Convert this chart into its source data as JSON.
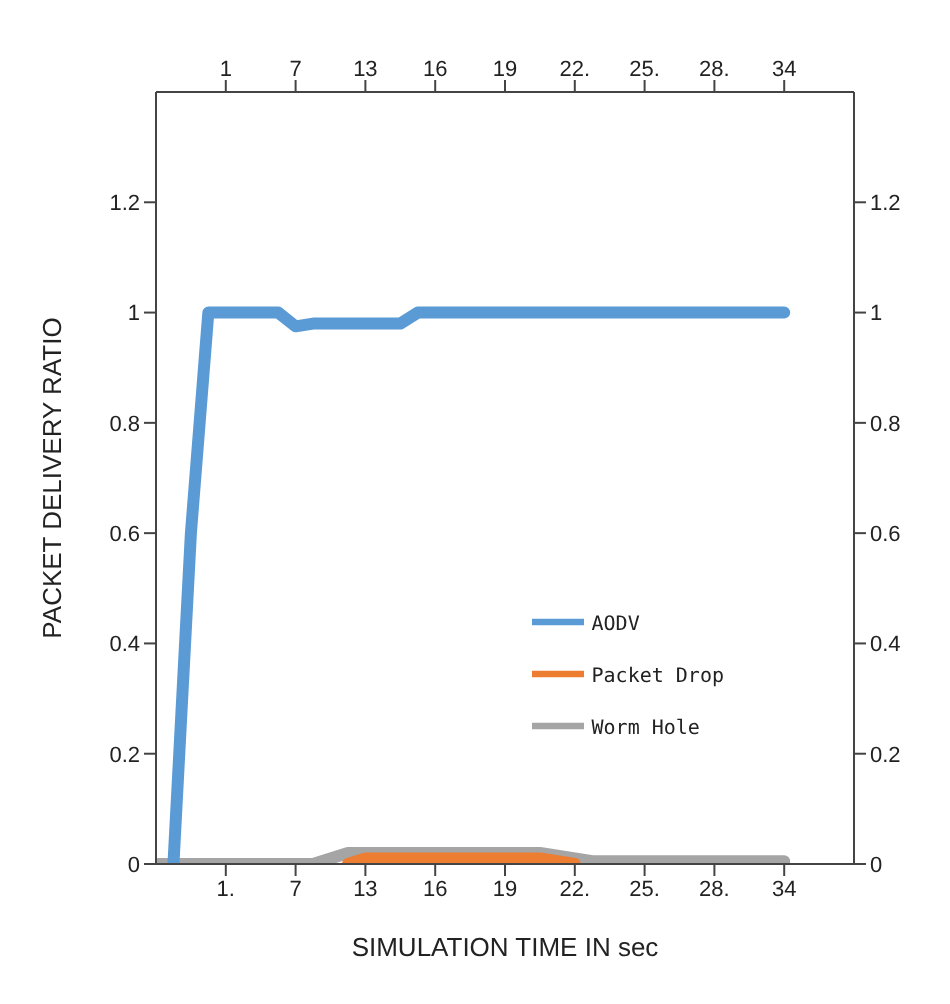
{
  "chart_data": {
    "type": "line",
    "xlabel": "SIMULATION TIME IN sec",
    "ylabel": "PACKET DELIVERY RATIO",
    "categories": [
      null,
      null,
      null,
      null,
      "1.",
      null,
      null,
      null,
      "7",
      null,
      null,
      null,
      "13",
      null,
      null,
      null,
      "16",
      null,
      null,
      null,
      "19",
      null,
      null,
      null,
      "22.",
      null,
      null,
      null,
      "25.",
      null,
      null,
      null,
      "28.",
      null,
      null,
      null,
      "34",
      null,
      null,
      null,
      null
    ],
    "annotations": [
      "1",
      "7",
      "13",
      "16",
      "19",
      "22.",
      "25.",
      "28.",
      "34"
    ],
    "ylim": [
      0,
      1.4
    ],
    "yticks": [
      0,
      0.2,
      0.4,
      0.6,
      0.8,
      1,
      1.2
    ],
    "y2lim": [
      0,
      1.4
    ],
    "y2ticks": [
      0,
      0.2,
      0.4,
      0.6,
      0.8,
      1,
      1.2
    ],
    "grid": false,
    "legend": "right",
    "marker": "none",
    "line_style": "solid",
    "series": [
      {
        "name": "AODV",
        "color": "#5b9bd5",
        "values": [
          null,
          0,
          0.6,
          1,
          1,
          1,
          1,
          1,
          0.975,
          0.98,
          0.98,
          0.98,
          0.98,
          0.98,
          0.98,
          1,
          1,
          1,
          1,
          1,
          1,
          1,
          1,
          1,
          1,
          1,
          1,
          1,
          1,
          1,
          1,
          1,
          1,
          1,
          1,
          1,
          1,
          null,
          null,
          null,
          null
        ]
      },
      {
        "name": "Packet Drop",
        "color": "#ed7d31",
        "values": [
          null,
          null,
          null,
          null,
          null,
          null,
          null,
          null,
          null,
          null,
          null,
          0,
          0.01,
          0.01,
          0.01,
          0.01,
          0.01,
          0.01,
          0.01,
          0.01,
          0.01,
          0.01,
          0.01,
          0.005,
          0,
          null,
          null,
          null,
          null,
          null,
          null,
          null,
          null,
          null,
          null,
          null,
          null,
          null,
          null,
          null,
          null
        ]
      },
      {
        "name": "Worm Hole",
        "color": "#a5a5a5",
        "values": [
          0,
          0,
          0,
          0,
          0,
          0,
          0,
          0,
          0,
          0,
          0.01,
          0.02,
          0.02,
          0.02,
          0.02,
          0.02,
          0.02,
          0.02,
          0.02,
          0.02,
          0.02,
          0.02,
          0.02,
          0.015,
          0.01,
          0.005,
          0.005,
          0.005,
          0.005,
          0.005,
          0.005,
          0.005,
          0.005,
          0.005,
          0.005,
          0.005,
          0.005,
          null,
          null,
          null,
          null
        ]
      }
    ]
  }
}
